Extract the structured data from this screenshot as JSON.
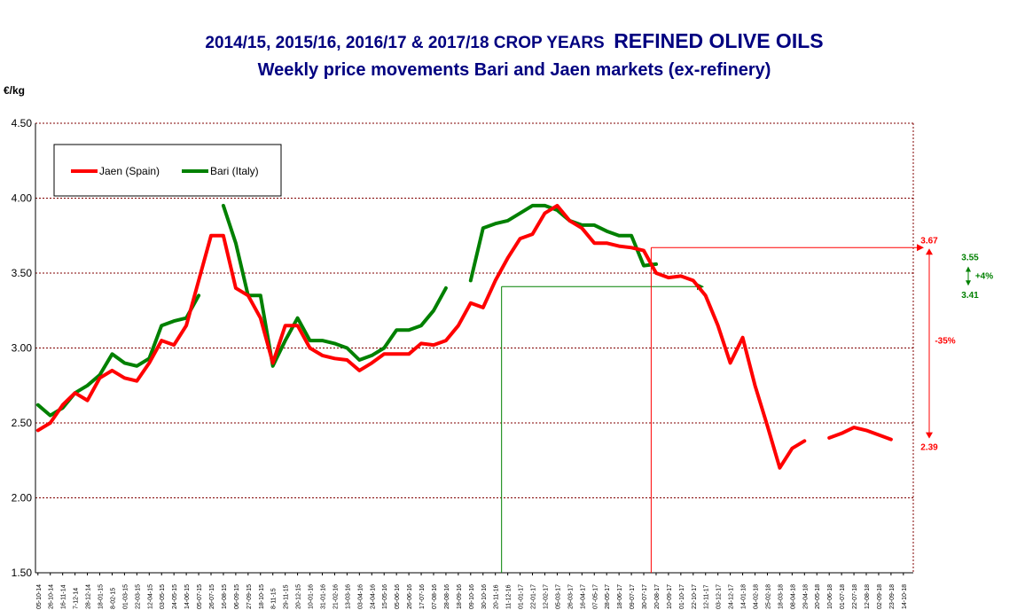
{
  "chart_data": {
    "type": "line",
    "title": "2014/15,  2015/16, 2016/17  & 2017/18 CROP YEARS",
    "title_emphasis": "REFINED OLIVE OILS",
    "subtitle": "Weekly  price movements Bari  and Jaen markets (ex-refinery)",
    "ylabel": "€/kg",
    "ylim": [
      1.5,
      4.5
    ],
    "yticks": [
      "1.50",
      "2.00",
      "2.50",
      "3.00",
      "3.50",
      "4.00",
      "4.50"
    ],
    "grid": true,
    "legend_position": "top-left",
    "x": [
      "05-10-14",
      "26-10-14",
      "16-11-14",
      "7-12-14",
      "28-12-14",
      "18-01-15",
      "8-02-15",
      "01-03-15",
      "22-03-15",
      "12-04-15",
      "03-05-15",
      "24-05-15",
      "14-06-15",
      "05-07-15",
      "26-07-15",
      "16-08-15",
      "06-09-15",
      "27-09-15",
      "18-10-15",
      "8-11-15",
      "29-11-15",
      "20-12-15",
      "10-01-16",
      "31-01-16",
      "21-02-16",
      "13-03-16",
      "03-04-16",
      "24-04-16",
      "15-05-16",
      "05-06-16",
      "26-06-16",
      "17-07-16",
      "07-08-16",
      "28-08-16",
      "18-09-16",
      "09-10-16",
      "30-10-16",
      "20-11-16",
      "11-12-16",
      "01-01-17",
      "22-01-17",
      "12-02-17",
      "05-03-17",
      "26-03-17",
      "16-04-17",
      "07-05-17",
      "28-05-17",
      "18-06-17",
      "09-07-17",
      "30-07-17",
      "20-08-17",
      "10-09-17",
      "01-10-17",
      "22-10-17",
      "12-11-17",
      "03-12-17",
      "24-12-17",
      "14-01-18",
      "04-02-18",
      "25-02-18",
      "18-03-18",
      "08-04-18",
      "29-04-18",
      "20-05-18",
      "10-06-18",
      "01-07-18",
      "22-07-18",
      "12-08-18",
      "02-09-18",
      "23-09-18",
      "14-10-18"
    ],
    "series": [
      {
        "name": "Jaen (Spain)",
        "color": "#ff0000",
        "values": [
          2.45,
          2.5,
          2.62,
          2.7,
          2.65,
          2.8,
          2.85,
          2.8,
          2.78,
          2.9,
          3.05,
          3.02,
          3.15,
          3.45,
          3.75,
          3.75,
          3.4,
          3.35,
          3.2,
          2.9,
          3.15,
          3.15,
          3.0,
          2.95,
          2.93,
          2.92,
          2.85,
          2.9,
          2.96,
          2.96,
          2.96,
          3.03,
          3.02,
          3.05,
          3.15,
          3.3,
          3.27,
          3.45,
          3.6,
          3.73,
          3.76,
          3.9,
          3.95,
          3.85,
          3.8,
          3.7,
          3.7,
          3.68,
          3.67,
          3.65,
          3.5,
          3.47,
          3.48,
          3.45,
          3.35,
          3.15,
          2.9,
          3.07,
          2.75,
          2.48,
          2.2,
          2.33,
          2.38,
          null,
          2.4,
          2.43,
          2.47,
          2.45,
          2.42,
          2.39,
          null
        ]
      },
      {
        "name": "Bari (Italy)",
        "color": "#008000",
        "values": [
          2.62,
          2.55,
          2.6,
          2.7,
          2.75,
          2.82,
          2.96,
          2.9,
          2.88,
          2.93,
          3.15,
          3.18,
          3.2,
          3.35,
          null,
          3.95,
          3.7,
          3.35,
          3.35,
          2.88,
          3.05,
          3.2,
          3.05,
          3.05,
          3.03,
          3.0,
          2.92,
          2.95,
          3.0,
          3.12,
          3.12,
          3.15,
          3.25,
          3.4,
          null,
          3.45,
          3.8,
          3.83,
          3.85,
          3.9,
          3.95,
          3.95,
          3.92,
          3.85,
          3.82,
          3.82,
          3.78,
          3.75,
          3.75,
          3.55,
          3.56,
          null,
          null,
          null,
          null,
          null,
          null,
          null,
          null,
          null,
          null,
          null,
          null,
          null,
          null,
          null,
          null,
          null,
          null,
          null,
          null
        ]
      }
    ],
    "annotations": {
      "jaen_high": "3.67",
      "jaen_low": "2.39",
      "jaen_change": "-35%",
      "bari_high": "3.55",
      "bari_low": "3.41",
      "bari_change": "+4%"
    }
  }
}
